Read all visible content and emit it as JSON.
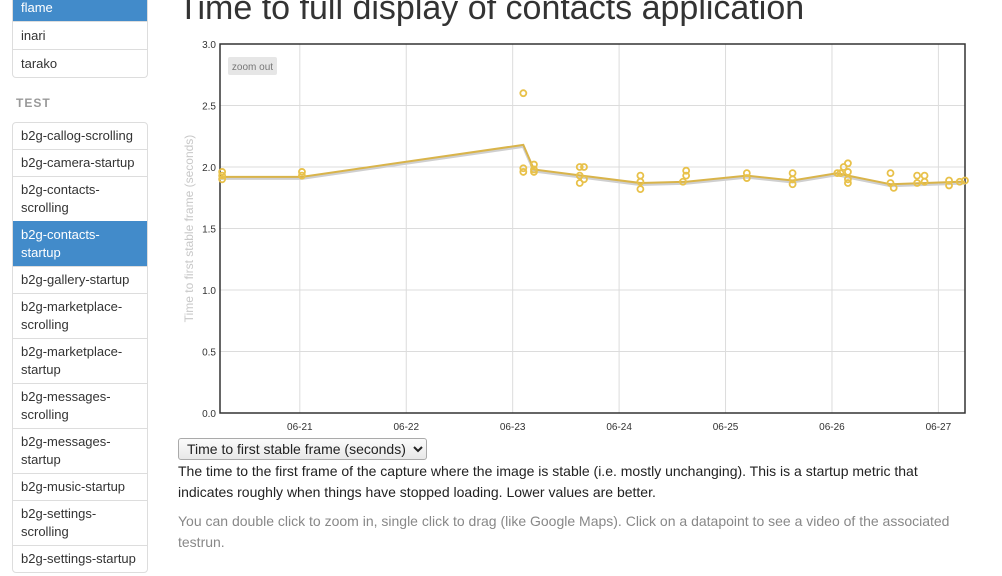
{
  "sidebar": {
    "top_items": [
      {
        "label": "flame",
        "active": true
      },
      {
        "label": "inari",
        "active": false
      },
      {
        "label": "tarako",
        "active": false
      }
    ],
    "section_title": "TEST",
    "test_items": [
      {
        "label": "b2g-callog-scrolling",
        "active": false
      },
      {
        "label": "b2g-camera-startup",
        "active": false
      },
      {
        "label": "b2g-contacts-scrolling",
        "active": false
      },
      {
        "label": "b2g-contacts-startup",
        "active": true
      },
      {
        "label": "b2g-gallery-startup",
        "active": false
      },
      {
        "label": "b2g-marketplace-scrolling",
        "active": false
      },
      {
        "label": "b2g-marketplace-startup",
        "active": false
      },
      {
        "label": "b2g-messages-scrolling",
        "active": false
      },
      {
        "label": "b2g-messages-startup",
        "active": false
      },
      {
        "label": "b2g-music-startup",
        "active": false
      },
      {
        "label": "b2g-settings-scrolling",
        "active": false
      },
      {
        "label": "b2g-settings-startup",
        "active": false
      }
    ]
  },
  "main": {
    "title": "Time to full display of contacts application",
    "zoom_out_label": "zoom out",
    "metric_select": "Time to first stable frame (seconds)",
    "description": "The time to the first frame of the capture where the image is stable (i.e. mostly unchanging). This is a startup metric that indicates roughly when things have stopped loading. Lower values are better.",
    "help": "You can double click to zoom in, single click to drag (like Google Maps). Click on a datapoint to see a video of the associated testrun."
  },
  "chart_data": {
    "type": "scatter",
    "title": "",
    "xlabel": "",
    "ylabel": "Time to first stable frame (seconds)",
    "xlim": [
      20.0,
      27.0
    ],
    "ylim": [
      0,
      3.0
    ],
    "xticks": [
      {
        "v": 20.75,
        "label": "06-21"
      },
      {
        "v": 21.75,
        "label": "06-22"
      },
      {
        "v": 22.75,
        "label": "06-23"
      },
      {
        "v": 23.75,
        "label": "06-24"
      },
      {
        "v": 24.75,
        "label": "06-25"
      },
      {
        "v": 25.75,
        "label": "06-26"
      },
      {
        "v": 26.75,
        "label": "06-27"
      }
    ],
    "yticks": [
      0.0,
      0.5,
      1.0,
      1.5,
      2.0,
      2.5,
      3.0
    ],
    "grid": true,
    "color": "#e8c14a",
    "line_color": "#d9b44a",
    "mean_line": {
      "x": [
        20.0,
        20.77,
        22.85,
        22.95,
        23.4,
        23.95,
        24.38,
        24.95,
        25.38,
        25.8,
        25.9,
        26.3,
        26.95,
        27.0
      ],
      "y": [
        1.92,
        1.92,
        2.18,
        1.98,
        1.93,
        1.87,
        1.88,
        1.93,
        1.89,
        1.95,
        1.93,
        1.86,
        1.88,
        1.88
      ]
    },
    "points": {
      "x": [
        20.02,
        20.02,
        20.02,
        20.77,
        20.77,
        22.85,
        22.85,
        22.85,
        22.95,
        22.95,
        22.95,
        23.38,
        23.38,
        23.42,
        23.42,
        23.38,
        23.95,
        23.95,
        23.95,
        24.35,
        24.38,
        24.38,
        24.95,
        24.95,
        25.38,
        25.38,
        25.38,
        25.8,
        25.83,
        25.86,
        25.9,
        25.9,
        25.9,
        25.9,
        26.3,
        26.3,
        26.33,
        26.55,
        26.55,
        26.62,
        26.62,
        26.85,
        26.85,
        26.95,
        27.0
      ],
      "y": [
        1.96,
        1.93,
        1.9,
        1.96,
        1.93,
        2.6,
        1.99,
        1.96,
        2.02,
        1.98,
        1.96,
        2.0,
        1.93,
        2.0,
        1.9,
        1.87,
        1.93,
        1.88,
        1.82,
        1.88,
        1.93,
        1.97,
        1.95,
        1.91,
        1.95,
        1.9,
        1.86,
        1.95,
        1.95,
        2.0,
        2.03,
        1.96,
        1.9,
        1.87,
        1.95,
        1.87,
        1.83,
        1.93,
        1.87,
        1.93,
        1.88,
        1.89,
        1.85,
        1.88,
        1.89
      ]
    }
  }
}
